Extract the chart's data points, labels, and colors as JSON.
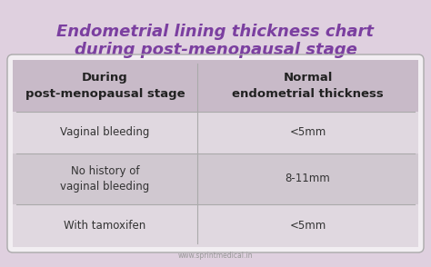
{
  "title_line1": "Endometrial lining thickness chart",
  "title_line2": "during post-menopausal stage",
  "title_color": "#7B3FA0",
  "bg_color": "#DFD0DF",
  "table_border_color": "#AAAAAA",
  "header_bg": "#C8BAC8",
  "row_odd_bg": "#E0D8E0",
  "row_even_bg": "#D0C8D0",
  "table_white": "#F2EEF2",
  "col1_header": "During\npost-menopausal stage",
  "col2_header": "Normal\nendometrial thickness",
  "rows": [
    [
      "Vaginal bleeding",
      "<5mm"
    ],
    [
      "No history of\nvaginal bleeding",
      "8-11mm"
    ],
    [
      "With tamoxifen",
      "<5mm"
    ]
  ],
  "footer": "www.sprintmedical.in",
  "header_text_color": "#222222",
  "row_text_color": "#333333",
  "footer_color": "#999999",
  "col_split": 0.455
}
